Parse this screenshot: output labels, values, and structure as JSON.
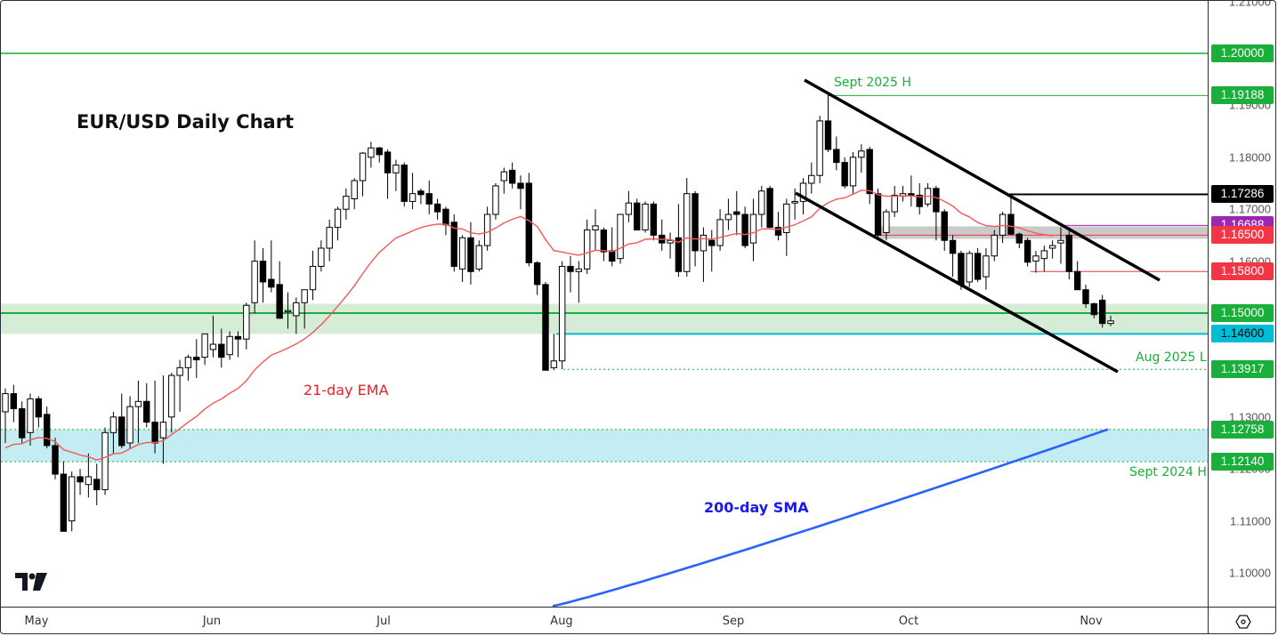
{
  "chart_data": {
    "type": "candlestick",
    "title": "EUR/USD Daily Chart",
    "symbol": "EUR/USD",
    "timeframe": "Daily",
    "xlabel": "",
    "ylabel": "",
    "ylim": [
      1.0935,
      1.21
    ],
    "x_tick_labels": [
      "May",
      "Jun",
      "Jul",
      "Aug",
      "Sep",
      "Oct",
      "Nov"
    ],
    "y_tick_labels": [
      "1.21000",
      "1.20000",
      "1.19000",
      "1.18000",
      "1.17000",
      "1.16000",
      "1.15000",
      "1.14000",
      "1.13000",
      "1.12000",
      "1.11000",
      "1.10000"
    ],
    "grid": false,
    "legend": null,
    "candles": [
      {
        "o": 1.131,
        "h": 1.1355,
        "l": 1.125,
        "c": 1.1345
      },
      {
        "o": 1.1345,
        "h": 1.1362,
        "l": 1.129,
        "c": 1.1316
      },
      {
        "o": 1.1316,
        "h": 1.133,
        "l": 1.125,
        "c": 1.126
      },
      {
        "o": 1.127,
        "h": 1.1345,
        "l": 1.1245,
        "c": 1.1335
      },
      {
        "o": 1.1335,
        "h": 1.134,
        "l": 1.128,
        "c": 1.13
      },
      {
        "o": 1.1305,
        "h": 1.132,
        "l": 1.124,
        "c": 1.1245
      },
      {
        "o": 1.1245,
        "h": 1.126,
        "l": 1.118,
        "c": 1.119
      },
      {
        "o": 1.119,
        "h": 1.1215,
        "l": 1.108,
        "c": 1.108
      },
      {
        "o": 1.11,
        "h": 1.1195,
        "l": 1.108,
        "c": 1.1185
      },
      {
        "o": 1.1185,
        "h": 1.12,
        "l": 1.115,
        "c": 1.1175
      },
      {
        "o": 1.117,
        "h": 1.123,
        "l": 1.1145,
        "c": 1.1185
      },
      {
        "o": 1.118,
        "h": 1.121,
        "l": 1.113,
        "c": 1.116
      },
      {
        "o": 1.116,
        "h": 1.128,
        "l": 1.115,
        "c": 1.127
      },
      {
        "o": 1.127,
        "h": 1.131,
        "l": 1.123,
        "c": 1.13
      },
      {
        "o": 1.13,
        "h": 1.1345,
        "l": 1.124,
        "c": 1.1245
      },
      {
        "o": 1.125,
        "h": 1.134,
        "l": 1.124,
        "c": 1.132
      },
      {
        "o": 1.132,
        "h": 1.137,
        "l": 1.125,
        "c": 1.133
      },
      {
        "o": 1.133,
        "h": 1.1365,
        "l": 1.128,
        "c": 1.129
      },
      {
        "o": 1.129,
        "h": 1.137,
        "l": 1.123,
        "c": 1.125
      },
      {
        "o": 1.126,
        "h": 1.138,
        "l": 1.121,
        "c": 1.129
      },
      {
        "o": 1.13,
        "h": 1.1385,
        "l": 1.127,
        "c": 1.138
      },
      {
        "o": 1.138,
        "h": 1.141,
        "l": 1.131,
        "c": 1.1395
      },
      {
        "o": 1.1395,
        "h": 1.142,
        "l": 1.137,
        "c": 1.1415
      },
      {
        "o": 1.1415,
        "h": 1.145,
        "l": 1.1375,
        "c": 1.141
      },
      {
        "o": 1.1415,
        "h": 1.146,
        "l": 1.14,
        "c": 1.146
      },
      {
        "o": 1.143,
        "h": 1.1495,
        "l": 1.1415,
        "c": 1.144
      },
      {
        "o": 1.144,
        "h": 1.147,
        "l": 1.1395,
        "c": 1.1415
      },
      {
        "o": 1.142,
        "h": 1.1465,
        "l": 1.141,
        "c": 1.1455
      },
      {
        "o": 1.1455,
        "h": 1.1465,
        "l": 1.1415,
        "c": 1.145
      },
      {
        "o": 1.145,
        "h": 1.152,
        "l": 1.143,
        "c": 1.1515
      },
      {
        "o": 1.152,
        "h": 1.164,
        "l": 1.15,
        "c": 1.16
      },
      {
        "o": 1.16,
        "h": 1.1625,
        "l": 1.152,
        "c": 1.156
      },
      {
        "o": 1.1565,
        "h": 1.164,
        "l": 1.154,
        "c": 1.155
      },
      {
        "o": 1.1555,
        "h": 1.16,
        "l": 1.149,
        "c": 1.149
      },
      {
        "o": 1.1505,
        "h": 1.154,
        "l": 1.147,
        "c": 1.1505
      },
      {
        "o": 1.1495,
        "h": 1.153,
        "l": 1.146,
        "c": 1.152
      },
      {
        "o": 1.152,
        "h": 1.1545,
        "l": 1.147,
        "c": 1.1545
      },
      {
        "o": 1.1545,
        "h": 1.162,
        "l": 1.1525,
        "c": 1.159
      },
      {
        "o": 1.159,
        "h": 1.164,
        "l": 1.158,
        "c": 1.1625
      },
      {
        "o": 1.1625,
        "h": 1.168,
        "l": 1.16,
        "c": 1.1665
      },
      {
        "o": 1.1665,
        "h": 1.1705,
        "l": 1.164,
        "c": 1.17
      },
      {
        "o": 1.17,
        "h": 1.174,
        "l": 1.168,
        "c": 1.1725
      },
      {
        "o": 1.172,
        "h": 1.176,
        "l": 1.17,
        "c": 1.1755
      },
      {
        "o": 1.1755,
        "h": 1.181,
        "l": 1.1725,
        "c": 1.1808
      },
      {
        "o": 1.18,
        "h": 1.183,
        "l": 1.178,
        "c": 1.1818
      },
      {
        "o": 1.1818,
        "h": 1.182,
        "l": 1.179,
        "c": 1.1805
      },
      {
        "o": 1.181,
        "h": 1.1815,
        "l": 1.172,
        "c": 1.177
      },
      {
        "o": 1.177,
        "h": 1.1795,
        "l": 1.1735,
        "c": 1.1785
      },
      {
        "o": 1.1785,
        "h": 1.179,
        "l": 1.1705,
        "c": 1.1715
      },
      {
        "o": 1.1715,
        "h": 1.177,
        "l": 1.17,
        "c": 1.173
      },
      {
        "o": 1.1735,
        "h": 1.174,
        "l": 1.171,
        "c": 1.1728
      },
      {
        "o": 1.173,
        "h": 1.1755,
        "l": 1.169,
        "c": 1.171
      },
      {
        "o": 1.171,
        "h": 1.172,
        "l": 1.168,
        "c": 1.1695
      },
      {
        "o": 1.17,
        "h": 1.1705,
        "l": 1.165,
        "c": 1.167
      },
      {
        "o": 1.1675,
        "h": 1.169,
        "l": 1.158,
        "c": 1.159
      },
      {
        "o": 1.1585,
        "h": 1.165,
        "l": 1.156,
        "c": 1.1645
      },
      {
        "o": 1.1645,
        "h": 1.1675,
        "l": 1.1555,
        "c": 1.158
      },
      {
        "o": 1.1585,
        "h": 1.164,
        "l": 1.158,
        "c": 1.163
      },
      {
        "o": 1.163,
        "h": 1.1705,
        "l": 1.162,
        "c": 1.169
      },
      {
        "o": 1.169,
        "h": 1.175,
        "l": 1.168,
        "c": 1.1745
      },
      {
        "o": 1.1755,
        "h": 1.178,
        "l": 1.173,
        "c": 1.1772
      },
      {
        "o": 1.1775,
        "h": 1.179,
        "l": 1.174,
        "c": 1.175
      },
      {
        "o": 1.175,
        "h": 1.1765,
        "l": 1.17,
        "c": 1.174
      },
      {
        "o": 1.175,
        "h": 1.177,
        "l": 1.159,
        "c": 1.1597
      },
      {
        "o": 1.1597,
        "h": 1.16,
        "l": 1.1535,
        "c": 1.1555
      },
      {
        "o": 1.1555,
        "h": 1.156,
        "l": 1.142,
        "c": 1.139
      },
      {
        "o": 1.1395,
        "h": 1.146,
        "l": 1.139,
        "c": 1.1408
      },
      {
        "o": 1.1408,
        "h": 1.16,
        "l": 1.1392,
        "c": 1.159
      },
      {
        "o": 1.159,
        "h": 1.161,
        "l": 1.154,
        "c": 1.158
      },
      {
        "o": 1.158,
        "h": 1.16,
        "l": 1.152,
        "c": 1.1585
      },
      {
        "o": 1.1585,
        "h": 1.168,
        "l": 1.1575,
        "c": 1.166
      },
      {
        "o": 1.166,
        "h": 1.17,
        "l": 1.162,
        "c": 1.1668
      },
      {
        "o": 1.166,
        "h": 1.1665,
        "l": 1.16,
        "c": 1.1618
      },
      {
        "o": 1.162,
        "h": 1.1665,
        "l": 1.159,
        "c": 1.16
      },
      {
        "o": 1.1605,
        "h": 1.169,
        "l": 1.1595,
        "c": 1.169
      },
      {
        "o": 1.169,
        "h": 1.1735,
        "l": 1.1675,
        "c": 1.1712
      },
      {
        "o": 1.1712,
        "h": 1.172,
        "l": 1.166,
        "c": 1.166
      },
      {
        "o": 1.166,
        "h": 1.1715,
        "l": 1.1655,
        "c": 1.171
      },
      {
        "o": 1.171,
        "h": 1.1715,
        "l": 1.164,
        "c": 1.165
      },
      {
        "o": 1.165,
        "h": 1.168,
        "l": 1.162,
        "c": 1.1635
      },
      {
        "o": 1.1635,
        "h": 1.1655,
        "l": 1.1605,
        "c": 1.164
      },
      {
        "o": 1.1645,
        "h": 1.171,
        "l": 1.157,
        "c": 1.158
      },
      {
        "o": 1.158,
        "h": 1.176,
        "l": 1.157,
        "c": 1.173
      },
      {
        "o": 1.173,
        "h": 1.1735,
        "l": 1.159,
        "c": 1.162
      },
      {
        "o": 1.162,
        "h": 1.1665,
        "l": 1.156,
        "c": 1.165
      },
      {
        "o": 1.164,
        "h": 1.166,
        "l": 1.158,
        "c": 1.163
      },
      {
        "o": 1.163,
        "h": 1.17,
        "l": 1.162,
        "c": 1.168
      },
      {
        "o": 1.168,
        "h": 1.172,
        "l": 1.166,
        "c": 1.169
      },
      {
        "o": 1.1695,
        "h": 1.1735,
        "l": 1.165,
        "c": 1.169
      },
      {
        "o": 1.169,
        "h": 1.1705,
        "l": 1.1625,
        "c": 1.163
      },
      {
        "o": 1.1635,
        "h": 1.172,
        "l": 1.16,
        "c": 1.169
      },
      {
        "o": 1.169,
        "h": 1.1745,
        "l": 1.1665,
        "c": 1.1735
      },
      {
        "o": 1.174,
        "h": 1.1745,
        "l": 1.1665,
        "c": 1.1665
      },
      {
        "o": 1.1665,
        "h": 1.1695,
        "l": 1.164,
        "c": 1.165
      },
      {
        "o": 1.1655,
        "h": 1.172,
        "l": 1.161,
        "c": 1.171
      },
      {
        "o": 1.1712,
        "h": 1.174,
        "l": 1.168,
        "c": 1.1715
      },
      {
        "o": 1.1715,
        "h": 1.176,
        "l": 1.169,
        "c": 1.175
      },
      {
        "o": 1.175,
        "h": 1.179,
        "l": 1.173,
        "c": 1.1765
      },
      {
        "o": 1.1765,
        "h": 1.188,
        "l": 1.175,
        "c": 1.187
      },
      {
        "o": 1.187,
        "h": 1.192,
        "l": 1.181,
        "c": 1.1815
      },
      {
        "o": 1.1815,
        "h": 1.184,
        "l": 1.1775,
        "c": 1.179
      },
      {
        "o": 1.179,
        "h": 1.18,
        "l": 1.174,
        "c": 1.1745
      },
      {
        "o": 1.1745,
        "h": 1.181,
        "l": 1.173,
        "c": 1.18
      },
      {
        "o": 1.18,
        "h": 1.1825,
        "l": 1.177,
        "c": 1.1812
      },
      {
        "o": 1.1815,
        "h": 1.182,
        "l": 1.171,
        "c": 1.173
      },
      {
        "o": 1.173,
        "h": 1.174,
        "l": 1.1645,
        "c": 1.165
      },
      {
        "o": 1.1655,
        "h": 1.17,
        "l": 1.164,
        "c": 1.1695
      },
      {
        "o": 1.1695,
        "h": 1.1745,
        "l": 1.1685,
        "c": 1.1727
      },
      {
        "o": 1.1725,
        "h": 1.1745,
        "l": 1.1715,
        "c": 1.173
      },
      {
        "o": 1.173,
        "h": 1.1765,
        "l": 1.1705,
        "c": 1.1727
      },
      {
        "o": 1.1727,
        "h": 1.175,
        "l": 1.169,
        "c": 1.1705
      },
      {
        "o": 1.171,
        "h": 1.175,
        "l": 1.1705,
        "c": 1.174
      },
      {
        "o": 1.174,
        "h": 1.1745,
        "l": 1.164,
        "c": 1.1695
      },
      {
        "o": 1.1695,
        "h": 1.17,
        "l": 1.162,
        "c": 1.164
      },
      {
        "o": 1.164,
        "h": 1.165,
        "l": 1.157,
        "c": 1.1615
      },
      {
        "o": 1.1615,
        "h": 1.162,
        "l": 1.1545,
        "c": 1.1555
      },
      {
        "o": 1.156,
        "h": 1.162,
        "l": 1.155,
        "c": 1.1615
      },
      {
        "o": 1.1615,
        "h": 1.1625,
        "l": 1.156,
        "c": 1.1565
      },
      {
        "o": 1.157,
        "h": 1.1625,
        "l": 1.1545,
        "c": 1.161
      },
      {
        "o": 1.161,
        "h": 1.166,
        "l": 1.16,
        "c": 1.165
      },
      {
        "o": 1.165,
        "h": 1.1695,
        "l": 1.1635,
        "c": 1.169
      },
      {
        "o": 1.169,
        "h": 1.1728,
        "l": 1.165,
        "c": 1.1652
      },
      {
        "o": 1.1652,
        "h": 1.1655,
        "l": 1.1625,
        "c": 1.1635
      },
      {
        "o": 1.164,
        "h": 1.1645,
        "l": 1.159,
        "c": 1.1598
      },
      {
        "o": 1.16,
        "h": 1.162,
        "l": 1.1578,
        "c": 1.161
      },
      {
        "o": 1.1605,
        "h": 1.163,
        "l": 1.158,
        "c": 1.162
      },
      {
        "o": 1.1625,
        "h": 1.164,
        "l": 1.1605,
        "c": 1.163
      },
      {
        "o": 1.1635,
        "h": 1.1665,
        "l": 1.1595,
        "c": 1.164
      },
      {
        "o": 1.165,
        "h": 1.1665,
        "l": 1.1565,
        "c": 1.158
      },
      {
        "o": 1.158,
        "h": 1.16,
        "l": 1.1545,
        "c": 1.1545
      },
      {
        "o": 1.1545,
        "h": 1.1555,
        "l": 1.151,
        "c": 1.1518
      },
      {
        "o": 1.1518,
        "h": 1.152,
        "l": 1.149,
        "c": 1.1497
      },
      {
        "o": 1.1525,
        "h": 1.1535,
        "l": 1.1472,
        "c": 1.148
      },
      {
        "o": 1.148,
        "h": 1.1495,
        "l": 1.1475,
        "c": 1.1485
      }
    ],
    "indicators": [
      {
        "name": "21-day EMA",
        "color": "#f05a5a"
      },
      {
        "name": "200-day SMA",
        "color": "#2962ff"
      }
    ],
    "levels": [
      {
        "price": "1.20000",
        "color": "#1aaf3a"
      },
      {
        "price": "1.19188",
        "label": "Sept 2025 H",
        "color": "#1aaf3a"
      },
      {
        "price": "1.17286",
        "color": "#000000"
      },
      {
        "price": "1.16688",
        "color": "#9c27b0"
      },
      {
        "price": "1.16500",
        "color": "#f23645"
      },
      {
        "price": "1.15800",
        "color": "#f23645"
      },
      {
        "price": "1.15000",
        "color": "#1aaf3a"
      },
      {
        "price": "1.14600",
        "color": "#00bcd4"
      },
      {
        "price": "1.13917",
        "label": "Aug 2025 L",
        "color": "#1aaf3a"
      },
      {
        "price": "1.12758",
        "color": "#1aaf3a"
      },
      {
        "price": "1.12140",
        "label": "Sept 2024 H",
        "color": "#1aaf3a"
      }
    ],
    "annotations": [
      "Sept 2025 H",
      "Aug 2025 L",
      "Sept 2024 H",
      "21-day EMA",
      "200-day SMA"
    ],
    "zones": [
      {
        "name": "support-zone-1.15",
        "from": 1.146,
        "to": 1.1515,
        "color": "#d5ecd6"
      },
      {
        "name": "support-zone-1.12",
        "from": 1.1214,
        "to": 1.12758,
        "color": "#c3ecf3"
      },
      {
        "name": "resistance-zone-1.165",
        "from": 1.1643,
        "to": 1.1667,
        "color": "#c4c4c4"
      }
    ],
    "trend_channel": {
      "upper": "descending from Sept 2025 high",
      "lower": "descending parallel"
    }
  },
  "header": {
    "title": "EUR/USD Daily Chart"
  },
  "price_axis": {
    "ticks": [
      "1.21000",
      "1.19000",
      "1.18000",
      "1.17000",
      "1.16000",
      "1.14000",
      "1.13000",
      "1.12000",
      "1.11000",
      "1.10000"
    ],
    "labels": [
      {
        "text": "1.20000",
        "bg": "#1aaf3a",
        "fg": "#ffffff"
      },
      {
        "text": "1.19188",
        "bg": "#1aaf3a",
        "fg": "#ffffff"
      },
      {
        "text": "1.17286",
        "bg": "#000000",
        "fg": "#ffffff"
      },
      {
        "text": "1.16688",
        "bg": "#9c27b0",
        "fg": "#ffffff"
      },
      {
        "text": "1.16500",
        "bg": "#f23645",
        "fg": "#ffffff"
      },
      {
        "text": "1.15800",
        "bg": "#f23645",
        "fg": "#ffffff"
      },
      {
        "text": "1.15000",
        "bg": "#1aaf3a",
        "fg": "#ffffff"
      },
      {
        "text": "1.14600",
        "bg": "#00bcd4",
        "fg": "#000000"
      },
      {
        "text": "1.13917",
        "bg": "#1aaf3a",
        "fg": "#ffffff"
      },
      {
        "text": "1.12758",
        "bg": "#1aaf3a",
        "fg": "#ffffff"
      },
      {
        "text": "1.12140",
        "bg": "#1aaf3a",
        "fg": "#ffffff"
      }
    ]
  },
  "time_axis": {
    "months": [
      "May",
      "Jun",
      "Jul",
      "Aug",
      "Sep",
      "Oct",
      "Nov"
    ]
  },
  "annotations": {
    "sept_2025_high": "Sept 2025 H",
    "aug_2025_low": "Aug 2025 L",
    "sept_2024_high": "Sept 2024 H",
    "ema_label": "21-day EMA",
    "sma_label": "200-day SMA"
  },
  "colors": {
    "green": "#1aaf3a",
    "ema": "#f05a5a",
    "sma": "#2962ff",
    "cyan": "#00bcd4",
    "purple": "#9c27b0",
    "red": "#f23645"
  },
  "icons": {
    "logo": "tradingview-logo-icon",
    "settings": "settings-hex-icon"
  }
}
